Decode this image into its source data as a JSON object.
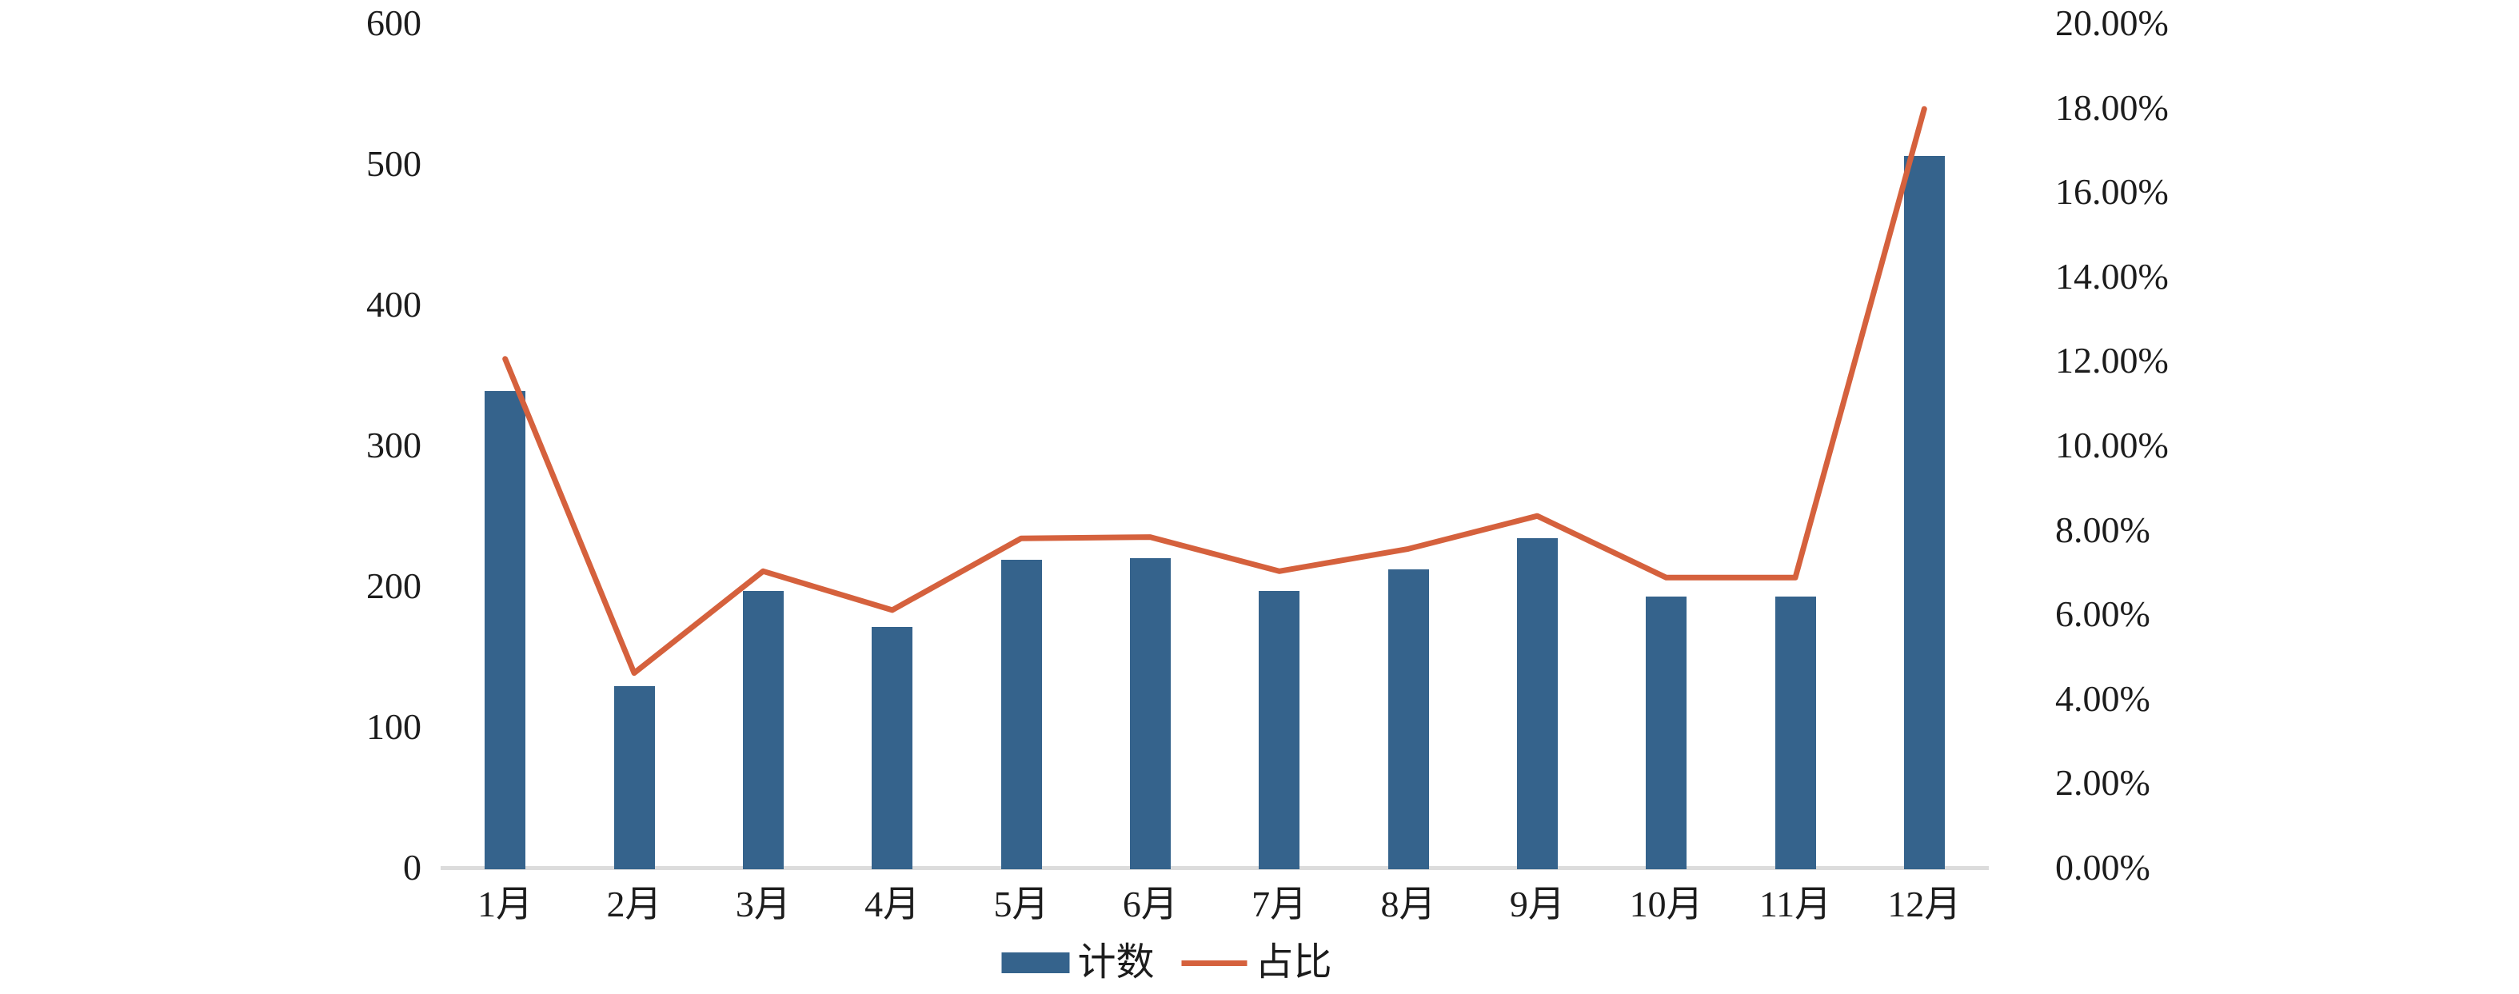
{
  "chart_data": {
    "type": "bar+line",
    "title": "",
    "categories": [
      "1月",
      "2月",
      "3月",
      "4月",
      "5月",
      "6月",
      "7月",
      "8月",
      "9月",
      "10月",
      "11月",
      "12月"
    ],
    "series": [
      {
        "name": "计数",
        "chart_type": "bar",
        "axis": "left",
        "values": [
          340,
          130,
          198,
          172,
          220,
          221,
          198,
          213,
          235,
          194,
          194,
          507
        ]
      },
      {
        "name": "占比",
        "chart_type": "line",
        "axis": "right",
        "values_percent": [
          12.05,
          4.61,
          7.02,
          6.1,
          7.8,
          7.83,
          7.02,
          7.55,
          8.33,
          6.87,
          6.87,
          17.97
        ]
      }
    ],
    "left_axis": {
      "min": 0,
      "max": 600,
      "step": 100,
      "tick_labels": [
        "0",
        "100",
        "200",
        "300",
        "400",
        "500",
        "600"
      ]
    },
    "right_axis": {
      "min": 0,
      "max": 20,
      "step": 2,
      "tick_labels": [
        "0.00%",
        "2.00%",
        "4.00%",
        "6.00%",
        "8.00%",
        "10.00%",
        "12.00%",
        "14.00%",
        "16.00%",
        "18.00%",
        "20.00%"
      ]
    },
    "legend": {
      "position": "bottom-center",
      "items": [
        {
          "swatch": "bar",
          "label": "计数"
        },
        {
          "swatch": "line",
          "label": "占比"
        }
      ]
    },
    "grid": "off",
    "colors": {
      "bar": "#35638c",
      "line": "#d5613d",
      "axis_line": "#dcdcdc",
      "text": "#1c1c1c",
      "background": "#ffffff"
    }
  }
}
